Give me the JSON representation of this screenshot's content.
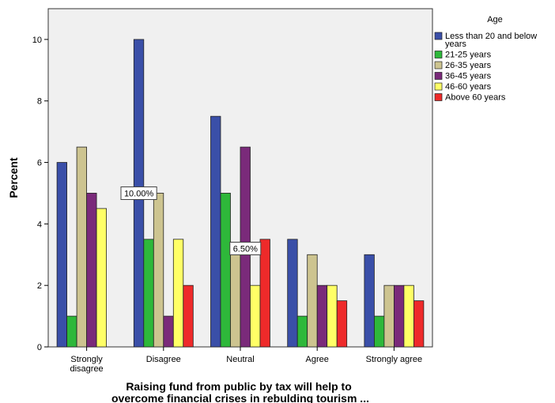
{
  "chart_data": {
    "type": "bar",
    "title": "",
    "xlabel_lines": [
      "Raising fund from public by tax will help to",
      "overcome financial crises in rebulding tourism ..."
    ],
    "ylabel": "Percent",
    "ylim": [
      0,
      11
    ],
    "yticks": [
      0,
      2,
      4,
      6,
      8,
      10
    ],
    "grid": false,
    "legend_title": "Age",
    "legend_position": "right",
    "categories": [
      [
        "Strongly",
        "disagree"
      ],
      [
        "Disagree"
      ],
      [
        "Neutral"
      ],
      [
        "Agree"
      ],
      [
        "Strongly agree"
      ]
    ],
    "series": [
      {
        "name_lines": [
          "Less than 20 and below",
          "years"
        ],
        "color": "#3a4fa8",
        "values": [
          6.0,
          10.0,
          7.5,
          3.5,
          3.0
        ]
      },
      {
        "name_lines": [
          "21-25 years"
        ],
        "color": "#2eb83a",
        "values": [
          1.0,
          3.5,
          5.0,
          1.0,
          1.0
        ]
      },
      {
        "name_lines": [
          "26-35 years"
        ],
        "color": "#cdc490",
        "values": [
          6.5,
          5.0,
          3.0,
          3.0,
          2.0
        ]
      },
      {
        "name_lines": [
          "36-45 years"
        ],
        "color": "#7a2a7a",
        "values": [
          5.0,
          1.0,
          6.5,
          2.0,
          2.0
        ]
      },
      {
        "name_lines": [
          "46-60 years"
        ],
        "color": "#ffff66",
        "values": [
          4.5,
          3.5,
          2.0,
          2.0,
          2.0
        ]
      },
      {
        "name_lines": [
          "Above 60 years"
        ],
        "color": "#ee2a2a",
        "values": [
          0,
          2.0,
          3.5,
          1.5,
          1.5
        ]
      }
    ],
    "annotations": [
      {
        "text": "10.00%",
        "category_index": 1,
        "series_index": 0,
        "anchor_value": 5.0
      },
      {
        "text": "6.50%",
        "category_index": 2,
        "series_index": 3,
        "anchor_value": 3.2
      }
    ],
    "colors": {
      "plot_background": "#f0f0f0",
      "page_background": "#ffffff"
    }
  }
}
